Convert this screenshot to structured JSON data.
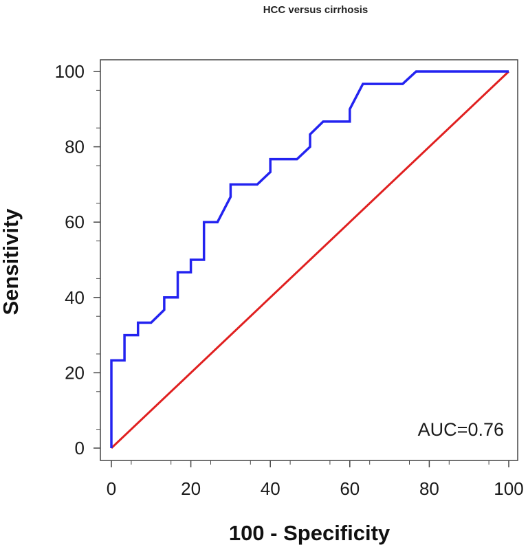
{
  "chart_data": {
    "type": "line",
    "title": "HCC versus cirrhosis",
    "xlabel": "100 - Specificity",
    "ylabel": "Sensitivity",
    "xlim": [
      0,
      100
    ],
    "ylim": [
      0,
      100
    ],
    "x_ticks": [
      0,
      20,
      40,
      60,
      80,
      100
    ],
    "y_ticks": [
      0,
      20,
      40,
      60,
      80,
      100
    ],
    "annotation": "AUC=0.76",
    "series": [
      {
        "name": "ROC curve",
        "color": "#2323f0",
        "points": [
          [
            0,
            0
          ],
          [
            0,
            23.3
          ],
          [
            3.3,
            23.3
          ],
          [
            3.3,
            30
          ],
          [
            6.7,
            30
          ],
          [
            6.7,
            33.3
          ],
          [
            10,
            33.3
          ],
          [
            13.3,
            36.7
          ],
          [
            13.3,
            40
          ],
          [
            16.7,
            40
          ],
          [
            16.7,
            46.7
          ],
          [
            20,
            46.7
          ],
          [
            20,
            50
          ],
          [
            23.3,
            50
          ],
          [
            23.3,
            60
          ],
          [
            26.7,
            60
          ],
          [
            30,
            66.7
          ],
          [
            30,
            70
          ],
          [
            36.7,
            70
          ],
          [
            40,
            73.3
          ],
          [
            40,
            76.7
          ],
          [
            46.7,
            76.7
          ],
          [
            50,
            80
          ],
          [
            50,
            83.3
          ],
          [
            53.3,
            86.7
          ],
          [
            60,
            86.7
          ],
          [
            60,
            90
          ],
          [
            63.3,
            96.7
          ],
          [
            73.3,
            96.7
          ],
          [
            76.7,
            100
          ],
          [
            100,
            100
          ]
        ]
      },
      {
        "name": "Reference line",
        "color": "#e02020",
        "points": [
          [
            0,
            0
          ],
          [
            100,
            100
          ]
        ]
      }
    ]
  }
}
